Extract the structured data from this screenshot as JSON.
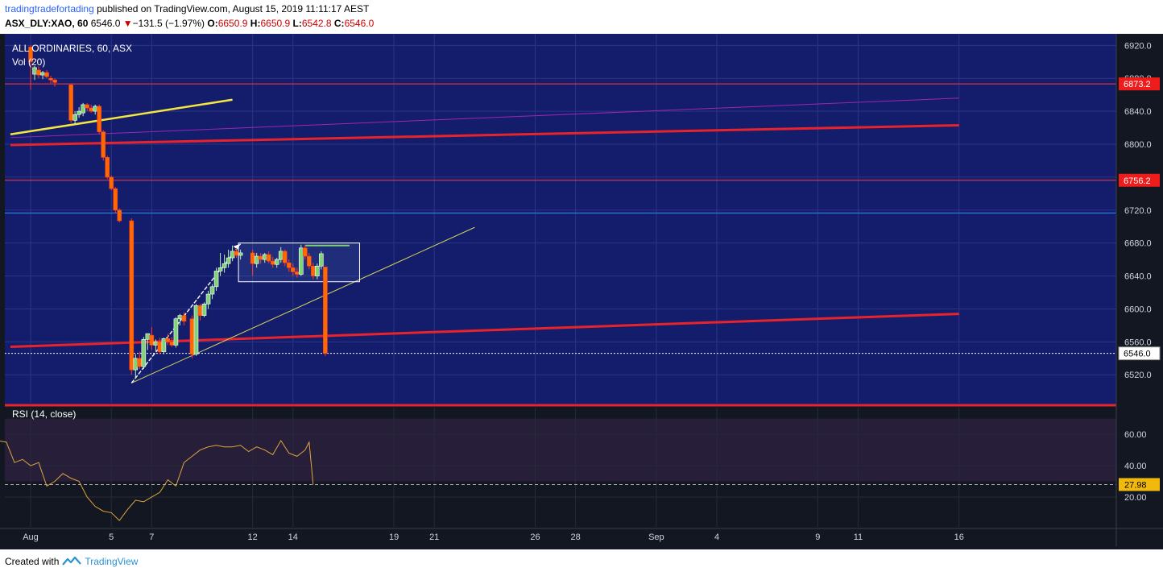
{
  "header": {
    "author": "tradingtradefortading",
    "published": "published on TradingView.com, August 15, 2019 11:11:17 AEST",
    "symbol": "ASX_DLY:XAO, 60",
    "last": "6546.0",
    "arrow": "▼",
    "change": "−131.5 (−1.97%)",
    "o_label": "O:",
    "o": "6650.9",
    "h_label": "H:",
    "h": "6650.9",
    "l_label": "L:",
    "l": "6542.8",
    "c_label": "C:",
    "c": "6546.0"
  },
  "legend": {
    "name": "ALL ORDINARIES, 60, ASX",
    "vol": "Vol (20)",
    "rsi": "RSI (14, close)"
  },
  "footer": {
    "created": "Created with",
    "brand": "TradingView"
  },
  "colors": {
    "price_bg": "#141d6b",
    "dark_bg": "#131722",
    "up": "#7ed37b",
    "down": "#ff6a00",
    "red_line": "#e8232c",
    "yellow": "#f5e642",
    "purple": "#9c27b0",
    "cyan": "#2196f3",
    "rsi_line": "#e0a53a"
  },
  "chart_data": [
    {
      "type": "candlestick",
      "title": "ALL ORDINARIES, 60, ASX",
      "y_ticks": [
        6920,
        6880,
        6840,
        6800,
        6760,
        6720,
        6680,
        6640,
        6600,
        6560,
        6520
      ],
      "y_tick_labels": [
        "6920.0",
        "6880.0",
        "6840.0",
        "6800.0",
        "6760.0",
        "6720.0",
        "6680.0",
        "6640.0",
        "6600.0",
        "6560.0",
        "6520.0"
      ],
      "ylim": [
        6486,
        6934
      ],
      "x_ticks": [
        {
          "label": "Aug",
          "day": 1
        },
        {
          "label": "5",
          "day": 5
        },
        {
          "label": "7",
          "day": 7
        },
        {
          "label": "12",
          "day": 12
        },
        {
          "label": "14",
          "day": 14
        },
        {
          "label": "19",
          "day": 19
        },
        {
          "label": "21",
          "day": 21
        },
        {
          "label": "26",
          "day": 26
        },
        {
          "label": "28",
          "day": 28
        },
        {
          "label": "Sep",
          "day": 32
        },
        {
          "label": "4",
          "day": 35
        },
        {
          "label": "9",
          "day": 40
        },
        {
          "label": "11",
          "day": 42
        },
        {
          "label": "16",
          "day": 47
        }
      ],
      "price_labels": [
        {
          "value": 6873.2,
          "text": "6873.2",
          "style": "red"
        },
        {
          "value": 6756.2,
          "text": "6756.2",
          "style": "red"
        },
        {
          "value": 6546.0,
          "text": "6546.0",
          "style": "white"
        }
      ],
      "candles": [
        {
          "day": 1.0,
          "o": 6918,
          "h": 6920,
          "l": 6866,
          "c": 6900
        },
        {
          "day": 1.2,
          "o": 6885,
          "h": 6895,
          "l": 6878,
          "c": 6893
        },
        {
          "day": 1.4,
          "o": 6890,
          "h": 6895,
          "l": 6880,
          "c": 6884
        },
        {
          "day": 1.6,
          "o": 6884,
          "h": 6889,
          "l": 6879,
          "c": 6887
        },
        {
          "day": 1.8,
          "o": 6887,
          "h": 6890,
          "l": 6880,
          "c": 6882
        },
        {
          "day": 2.0,
          "o": 6880,
          "h": 6883,
          "l": 6874,
          "c": 6878
        },
        {
          "day": 2.2,
          "o": 6878,
          "h": 6880,
          "l": 6870,
          "c": 6875
        },
        {
          "day": 3.0,
          "o": 6872,
          "h": 6874,
          "l": 6826,
          "c": 6829
        },
        {
          "day": 3.2,
          "o": 6829,
          "h": 6840,
          "l": 6825,
          "c": 6836
        },
        {
          "day": 3.4,
          "o": 6836,
          "h": 6845,
          "l": 6832,
          "c": 6840
        },
        {
          "day": 3.6,
          "o": 6838,
          "h": 6850,
          "l": 6834,
          "c": 6848
        },
        {
          "day": 3.8,
          "o": 6848,
          "h": 6850,
          "l": 6840,
          "c": 6844
        },
        {
          "day": 4.0,
          "o": 6844,
          "h": 6848,
          "l": 6838,
          "c": 6840
        },
        {
          "day": 4.2,
          "o": 6840,
          "h": 6848,
          "l": 6836,
          "c": 6846
        },
        {
          "day": 4.4,
          "o": 6846,
          "h": 6848,
          "l": 6812,
          "c": 6815
        },
        {
          "day": 4.6,
          "o": 6815,
          "h": 6817,
          "l": 6780,
          "c": 6784
        },
        {
          "day": 4.8,
          "o": 6784,
          "h": 6786,
          "l": 6758,
          "c": 6760
        },
        {
          "day": 5.0,
          "o": 6760,
          "h": 6762,
          "l": 6744,
          "c": 6746
        },
        {
          "day": 5.2,
          "o": 6746,
          "h": 6748,
          "l": 6716,
          "c": 6720
        },
        {
          "day": 5.4,
          "o": 6720,
          "h": 6722,
          "l": 6705,
          "c": 6707
        },
        {
          "day": 6.0,
          "o": 6707,
          "h": 6710,
          "l": 6520,
          "c": 6526
        },
        {
          "day": 6.2,
          "o": 6526,
          "h": 6545,
          "l": 6515,
          "c": 6540
        },
        {
          "day": 6.4,
          "o": 6540,
          "h": 6548,
          "l": 6527,
          "c": 6530
        },
        {
          "day": 6.6,
          "o": 6530,
          "h": 6566,
          "l": 6527,
          "c": 6563
        },
        {
          "day": 6.8,
          "o": 6563,
          "h": 6570,
          "l": 6550,
          "c": 6570
        },
        {
          "day": 7.0,
          "o": 6568,
          "h": 6578,
          "l": 6550,
          "c": 6556
        },
        {
          "day": 7.2,
          "o": 6556,
          "h": 6563,
          "l": 6549,
          "c": 6560
        },
        {
          "day": 7.4,
          "o": 6560,
          "h": 6565,
          "l": 6545,
          "c": 6548
        },
        {
          "day": 7.6,
          "o": 6548,
          "h": 6565,
          "l": 6545,
          "c": 6564
        },
        {
          "day": 7.8,
          "o": 6564,
          "h": 6570,
          "l": 6556,
          "c": 6560
        },
        {
          "day": 8.0,
          "o": 6560,
          "h": 6566,
          "l": 6554,
          "c": 6556
        },
        {
          "day": 8.2,
          "o": 6556,
          "h": 6590,
          "l": 6553,
          "c": 6588
        },
        {
          "day": 8.4,
          "o": 6588,
          "h": 6594,
          "l": 6580,
          "c": 6592
        },
        {
          "day": 8.6,
          "o": 6592,
          "h": 6596,
          "l": 6580,
          "c": 6585
        },
        {
          "day": 9.0,
          "o": 6588,
          "h": 6592,
          "l": 6540,
          "c": 6545
        },
        {
          "day": 9.2,
          "o": 6545,
          "h": 6606,
          "l": 6543,
          "c": 6604
        },
        {
          "day": 9.4,
          "o": 6604,
          "h": 6606,
          "l": 6586,
          "c": 6592
        },
        {
          "day": 9.6,
          "o": 6592,
          "h": 6608,
          "l": 6590,
          "c": 6606
        },
        {
          "day": 9.8,
          "o": 6606,
          "h": 6622,
          "l": 6600,
          "c": 6618
        },
        {
          "day": 10.0,
          "o": 6618,
          "h": 6630,
          "l": 6612,
          "c": 6627
        },
        {
          "day": 10.2,
          "o": 6627,
          "h": 6650,
          "l": 6622,
          "c": 6646
        },
        {
          "day": 10.4,
          "o": 6646,
          "h": 6668,
          "l": 6640,
          "c": 6650
        },
        {
          "day": 10.6,
          "o": 6650,
          "h": 6666,
          "l": 6644,
          "c": 6655
        },
        {
          "day": 10.8,
          "o": 6655,
          "h": 6672,
          "l": 6650,
          "c": 6662
        },
        {
          "day": 11.0,
          "o": 6662,
          "h": 6677,
          "l": 6658,
          "c": 6670
        },
        {
          "day": 11.2,
          "o": 6670,
          "h": 6674,
          "l": 6662,
          "c": 6665
        },
        {
          "day": 11.4,
          "o": 6665,
          "h": 6672,
          "l": 6660,
          "c": 6668
        },
        {
          "day": 12.0,
          "o": 6668,
          "h": 6672,
          "l": 6640,
          "c": 6655
        },
        {
          "day": 12.2,
          "o": 6655,
          "h": 6668,
          "l": 6650,
          "c": 6664
        },
        {
          "day": 12.4,
          "o": 6664,
          "h": 6668,
          "l": 6655,
          "c": 6660
        },
        {
          "day": 12.6,
          "o": 6660,
          "h": 6668,
          "l": 6656,
          "c": 6666
        },
        {
          "day": 12.8,
          "o": 6666,
          "h": 6670,
          "l": 6655,
          "c": 6658
        },
        {
          "day": 13.0,
          "o": 6658,
          "h": 6663,
          "l": 6650,
          "c": 6654
        },
        {
          "day": 13.2,
          "o": 6654,
          "h": 6662,
          "l": 6650,
          "c": 6660
        },
        {
          "day": 13.4,
          "o": 6660,
          "h": 6675,
          "l": 6656,
          "c": 6670
        },
        {
          "day": 13.6,
          "o": 6670,
          "h": 6672,
          "l": 6652,
          "c": 6656
        },
        {
          "day": 13.8,
          "o": 6656,
          "h": 6660,
          "l": 6645,
          "c": 6650
        },
        {
          "day": 14.0,
          "o": 6650,
          "h": 6655,
          "l": 6640,
          "c": 6645
        },
        {
          "day": 14.2,
          "o": 6645,
          "h": 6650,
          "l": 6638,
          "c": 6642
        },
        {
          "day": 14.4,
          "o": 6642,
          "h": 6678,
          "l": 6640,
          "c": 6674
        },
        {
          "day": 14.6,
          "o": 6674,
          "h": 6678,
          "l": 6660,
          "c": 6664
        },
        {
          "day": 14.8,
          "o": 6664,
          "h": 6668,
          "l": 6648,
          "c": 6652
        },
        {
          "day": 15.0,
          "o": 6652,
          "h": 6656,
          "l": 6636,
          "c": 6640
        },
        {
          "day": 15.2,
          "o": 6640,
          "h": 6655,
          "l": 6636,
          "c": 6652
        },
        {
          "day": 15.4,
          "o": 6652,
          "h": 6670,
          "l": 6648,
          "c": 6667
        },
        {
          "day": 15.6,
          "o": 6650.9,
          "h": 6650.9,
          "l": 6542.8,
          "c": 6546.0
        }
      ],
      "drawings": {
        "horizontal_lines": [
          {
            "value": 6873.2,
            "color": "#ff3a3a"
          },
          {
            "value": 6756.2,
            "color": "#ff3a3a"
          },
          {
            "value": 6716.5,
            "color": "#2196f3"
          }
        ],
        "trend_lines": [
          {
            "from": [
              0.0,
              6812
            ],
            "to": [
              11.0,
              6854
            ],
            "color": "#f5e642"
          },
          {
            "from": [
              0.0,
              6808
            ],
            "to": [
              47.0,
              6856
            ],
            "color": "#9c27b0"
          },
          {
            "from": [
              0.0,
              6799
            ],
            "to": [
              47.0,
              6823
            ],
            "color": "#e8232c"
          },
          {
            "from": [
              0.0,
              6554
            ],
            "to": [
              47.0,
              6594
            ],
            "color": "#e8232c"
          },
          {
            "from": [
              6.0,
              6510
            ],
            "to": [
              23.0,
              6699
            ],
            "color": "#d8d65a"
          },
          {
            "from": [
              6.0,
              6510
            ],
            "to": [
              11.4,
              6679
            ],
            "color": "#ffffff"
          }
        ],
        "rectangle": {
          "from_day": 11.3,
          "to_day": 17.3,
          "top": 6680,
          "bottom": 6633
        },
        "resistance_stub": {
          "from_day": 14.6,
          "to_day": 16.8,
          "value": 6677
        }
      }
    },
    {
      "type": "line",
      "title": "RSI (14, close)",
      "y_ticks": [
        60,
        40,
        20
      ],
      "y_tick_labels": [
        "60.00",
        "40.00",
        "20.00"
      ],
      "ylim": [
        2,
        76
      ],
      "last_label": "27.98",
      "band": [
        30,
        70
      ],
      "series": [
        {
          "x": [
            0.0,
            0.4,
            0.8,
            1.2,
            1.6,
            2.0,
            2.4,
            2.8,
            3.2,
            3.6,
            4.0,
            4.4,
            4.8,
            5.2,
            5.6,
            6.0,
            6.4,
            6.8,
            7.2,
            7.6,
            8.0,
            8.4,
            8.8,
            9.2,
            9.6,
            10.0,
            10.4,
            10.8,
            11.2,
            11.6,
            12.0,
            12.4,
            12.8,
            13.2,
            13.6,
            14.0,
            14.4,
            14.8,
            15.2,
            15.4,
            15.6
          ],
          "values": [
            56,
            55,
            42,
            44,
            40,
            42,
            27,
            30,
            35,
            32,
            30,
            20,
            14,
            11,
            10,
            5,
            12,
            18,
            17,
            20,
            23,
            31,
            27,
            42,
            46,
            50,
            52,
            53,
            52,
            52,
            53,
            49,
            52,
            50,
            47,
            56,
            48,
            46,
            50,
            55,
            28
          ]
        }
      ]
    }
  ]
}
